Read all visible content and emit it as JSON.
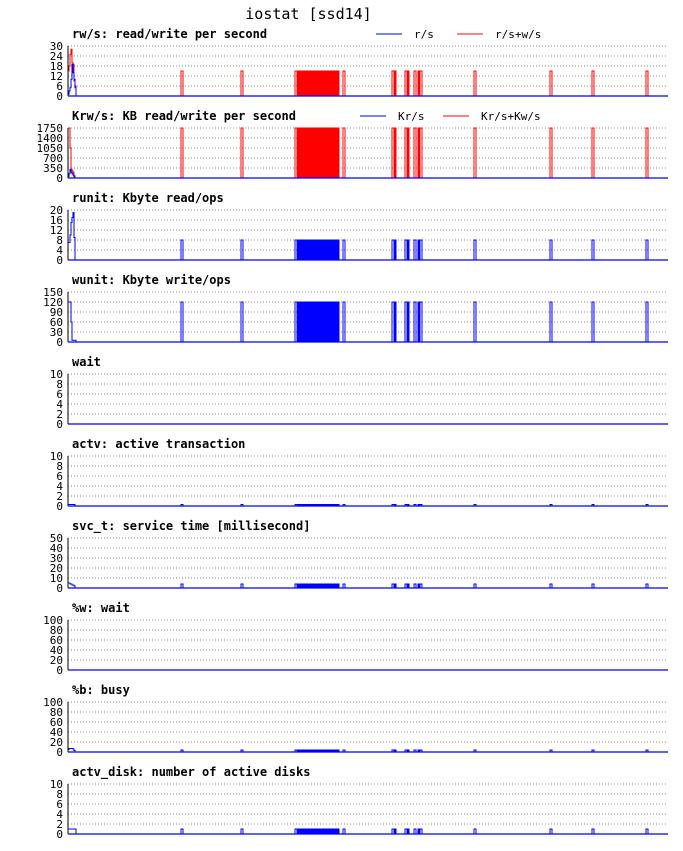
{
  "title": "iostat [ssd14]",
  "chart_data": [
    {
      "type": "line",
      "title": "rw/s: read/write per second",
      "ylim": [
        0,
        30
      ],
      "ticks": [
        0,
        6,
        12,
        18,
        24,
        30
      ],
      "legend": [
        {
          "name": "r/s",
          "color": "#0000ff"
        },
        {
          "name": "r/s+w/s",
          "color": "#ff0000"
        }
      ],
      "series": [
        {
          "name": "r/s+w/s",
          "color": "#ff0000",
          "initial": [
            [
              0,
              15
            ],
            [
              1,
              18
            ],
            [
              2,
              25
            ],
            [
              3,
              28
            ],
            [
              4,
              20
            ],
            [
              5,
              19
            ],
            [
              6,
              9
            ],
            [
              7,
              6
            ]
          ],
          "spike_value": 15
        },
        {
          "name": "r/s",
          "color": "#0000ff",
          "initial": [
            [
              0,
              1
            ],
            [
              1,
              3
            ],
            [
              2,
              5
            ],
            [
              3,
              10
            ],
            [
              4,
              19
            ],
            [
              5,
              14
            ],
            [
              6,
              10
            ],
            [
              7,
              5
            ]
          ],
          "spike_value": 0
        }
      ]
    },
    {
      "type": "line",
      "title": "Krw/s: KB read/write per second",
      "ylim": [
        0,
        1750
      ],
      "ticks": [
        0,
        350,
        700,
        1050,
        1400,
        1750
      ],
      "legend": [
        {
          "name": "Kr/s",
          "color": "#0000ff"
        },
        {
          "name": "Kr/s+Kw/s",
          "color": "#ff0000"
        }
      ],
      "series": [
        {
          "name": "Kr/s+Kw/s",
          "color": "#ff0000",
          "initial": [
            [
              0,
              1750
            ],
            [
              1,
              1750
            ],
            [
              2,
              1050
            ],
            [
              3,
              300
            ],
            [
              4,
              250
            ],
            [
              5,
              200
            ],
            [
              6,
              80
            ]
          ],
          "spike_value": 1750
        },
        {
          "name": "Kr/s",
          "color": "#0000ff",
          "initial": [
            [
              0,
              50
            ],
            [
              1,
              150
            ],
            [
              2,
              300
            ],
            [
              3,
              200
            ],
            [
              4,
              150
            ],
            [
              5,
              100
            ],
            [
              6,
              40
            ]
          ],
          "spike_value": 0
        }
      ]
    },
    {
      "type": "line",
      "title": "runit: Kbyte read/ops",
      "ylim": [
        0,
        20
      ],
      "ticks": [
        0,
        4,
        8,
        12,
        16,
        20
      ],
      "legend": [],
      "series": [
        {
          "name": "runit",
          "color": "#0000ff",
          "initial": [
            [
              0,
              7
            ],
            [
              1,
              7
            ],
            [
              2,
              10
            ],
            [
              3,
              15
            ],
            [
              4,
              17
            ],
            [
              5,
              19
            ],
            [
              6,
              9
            ]
          ],
          "spike_value": 8
        }
      ]
    },
    {
      "type": "line",
      "title": "wunit: Kbyte write/ops",
      "ylim": [
        0,
        150
      ],
      "ticks": [
        0,
        30,
        60,
        90,
        120,
        150
      ],
      "legend": [],
      "series": [
        {
          "name": "wunit",
          "color": "#0000ff",
          "initial": [
            [
              0,
              120
            ],
            [
              1,
              120
            ],
            [
              2,
              120
            ],
            [
              3,
              60
            ],
            [
              4,
              5
            ],
            [
              5,
              5
            ],
            [
              6,
              5
            ],
            [
              7,
              5
            ]
          ],
          "spike_value": 120
        }
      ]
    },
    {
      "type": "line",
      "title": "wait",
      "ylim": [
        0,
        10
      ],
      "ticks": [
        0,
        2,
        4,
        6,
        8,
        10
      ],
      "legend": [],
      "series": [
        {
          "name": "wait",
          "color": "#0000ff",
          "initial": [],
          "spike_value": 0
        }
      ]
    },
    {
      "type": "line",
      "title": "actv: active transaction",
      "ylim": [
        0,
        10
      ],
      "ticks": [
        0,
        2,
        4,
        6,
        8,
        10
      ],
      "legend": [],
      "series": [
        {
          "name": "actv",
          "color": "#0000ff",
          "initial": [
            [
              0,
              0.3
            ],
            [
              1,
              0.3
            ],
            [
              2,
              0.3
            ],
            [
              3,
              0.3
            ],
            [
              4,
              0.3
            ],
            [
              5,
              0.3
            ],
            [
              6,
              0.3
            ]
          ],
          "spike_value": 0.3
        }
      ]
    },
    {
      "type": "line",
      "title": "svc_t: service time [millisecond]",
      "ylim": [
        0,
        50
      ],
      "ticks": [
        0,
        10,
        20,
        30,
        40,
        50
      ],
      "legend": [],
      "series": [
        {
          "name": "svc_t",
          "color": "#0000ff",
          "initial": [
            [
              0,
              5
            ],
            [
              1,
              5
            ],
            [
              2,
              4
            ],
            [
              3,
              4
            ],
            [
              4,
              3
            ],
            [
              5,
              3
            ],
            [
              6,
              2
            ]
          ],
          "spike_value": 4
        }
      ]
    },
    {
      "type": "line",
      "title": "%w: wait",
      "ylim": [
        0,
        100
      ],
      "ticks": [
        0,
        20,
        40,
        60,
        80,
        100
      ],
      "legend": [],
      "series": [
        {
          "name": "%w",
          "color": "#0000ff",
          "initial": [],
          "spike_value": 0
        }
      ]
    },
    {
      "type": "line",
      "title": "%b: busy",
      "ylim": [
        0,
        100
      ],
      "ticks": [
        0,
        20,
        40,
        60,
        80,
        100
      ],
      "legend": [],
      "series": [
        {
          "name": "%b",
          "color": "#0000ff",
          "initial": [
            [
              0,
              5
            ],
            [
              1,
              7
            ],
            [
              2,
              7
            ],
            [
              3,
              7
            ],
            [
              4,
              7
            ],
            [
              5,
              6
            ],
            [
              6,
              3
            ]
          ],
          "spike_value": 4
        }
      ]
    },
    {
      "type": "line",
      "title": "actv_disk: number of active disks",
      "ylim": [
        0,
        10
      ],
      "ticks": [
        0,
        2,
        4,
        6,
        8,
        10
      ],
      "legend": [],
      "series": [
        {
          "name": "actv_disk",
          "color": "#0000ff",
          "initial": [
            [
              0,
              1
            ],
            [
              1,
              1
            ],
            [
              2,
              1
            ],
            [
              3,
              1
            ],
            [
              4,
              1
            ],
            [
              5,
              1
            ],
            [
              6,
              1
            ],
            [
              7,
              1
            ]
          ],
          "spike_value": 1
        }
      ]
    }
  ],
  "samples": 600,
  "spike_x": [
    113,
    114,
    173,
    174,
    227,
    228,
    230,
    232,
    234,
    236,
    238,
    240,
    242,
    244,
    246,
    248,
    250,
    252,
    254,
    256,
    258,
    260,
    262,
    264,
    266,
    268,
    270,
    275,
    276,
    324,
    325,
    327,
    337,
    338,
    340,
    346,
    347,
    350,
    352,
    353,
    406,
    407,
    482,
    483,
    524,
    525,
    578,
    579
  ]
}
